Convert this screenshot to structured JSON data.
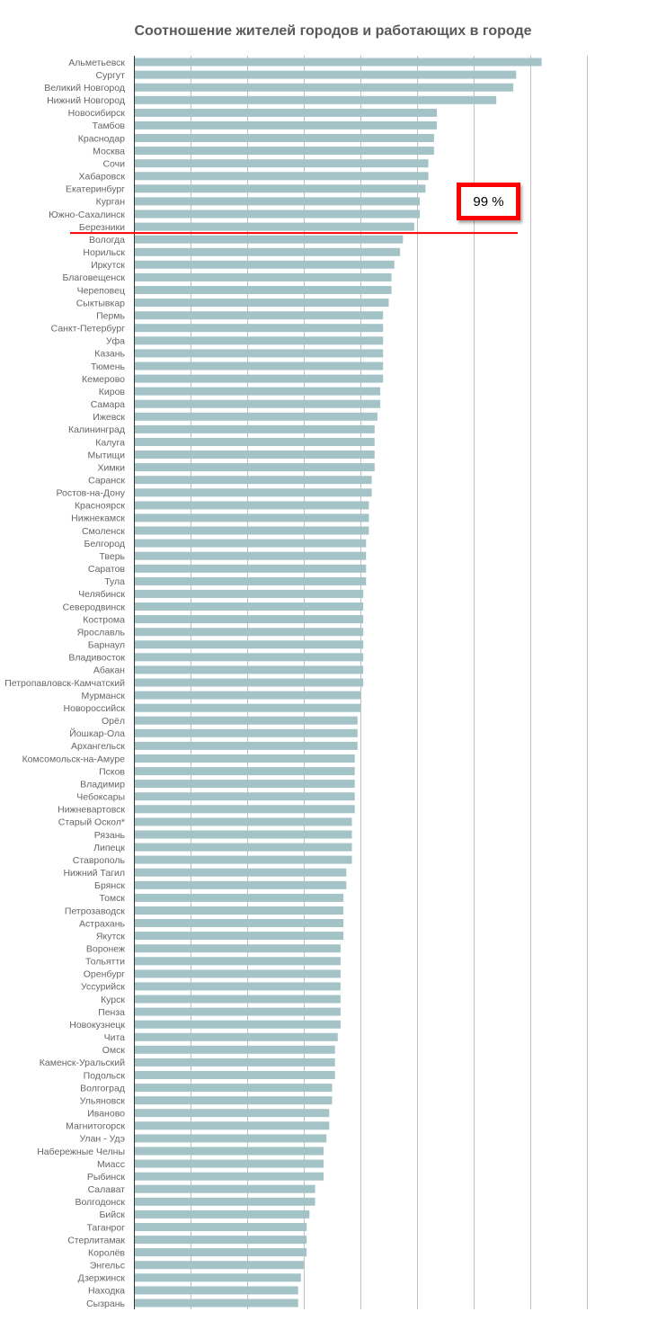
{
  "chart_data": {
    "type": "bar",
    "orientation": "horizontal",
    "title": "Соотношение жителей городов и работающих в городе",
    "xlabel": "",
    "ylabel": "",
    "unit": "%",
    "xlim": [
      0,
      160
    ],
    "grid_step": 20,
    "grid": true,
    "legend": "none",
    "colors": {
      "bar": "#a3c3c7",
      "grid": "#c0c0c0",
      "axis": "#333333",
      "annotation": "#ff0000"
    },
    "annotation": {
      "label": "99 %",
      "after_category": "Березники"
    },
    "categories": [
      "Альметьевск",
      "Сургут",
      "Великий Новгород",
      "Нижний Новгород",
      "Новосибирск",
      "Тамбов",
      "Краснодар",
      "Москва",
      "Сочи",
      "Хабаровск",
      "Екатеринбург",
      "Курган",
      "Южно-Сахалинск",
      "Березники",
      "Вологда",
      "Норильск",
      "Иркутск",
      "Благовещенск",
      "Череповец",
      "Сыктывкар",
      "Пермь",
      "Санкт-Петербург",
      "Уфа",
      "Казань",
      "Тюмень",
      "Кемерово",
      "Киров",
      "Самара",
      "Ижевск",
      "Калининград",
      "Калуга",
      "Мытищи",
      "Химки",
      "Саранск",
      "Ростов-на-Дону",
      "Красноярск",
      "Нижнекамск",
      "Смоленск",
      "Белгород",
      "Тверь",
      "Саратов",
      "Тула",
      "Челябинск",
      "Северодвинск",
      "Кострома",
      "Ярославль",
      "Барнаул",
      "Владивосток",
      "Абакан",
      "Петропавловск-Камчатский",
      "Мурманск",
      "Новороссийск",
      "Орёл",
      "Йошкар-Ола",
      "Архангельск",
      "Комсомольск-на-Амуре",
      "Псков",
      "Владимир",
      "Чебоксары",
      "Нижневартовск",
      "Старый Оскол*",
      "Рязань",
      "Липецк",
      "Ставрополь",
      "Нижний Тагил",
      "Брянск",
      "Томск",
      "Петрозаводск",
      "Астрахань",
      "Якутск",
      "Воронеж",
      "Тольятти",
      "Оренбург",
      "Уссурийск",
      "Курск",
      "Пенза",
      "Новокузнецк",
      "Чита",
      "Омск",
      "Каменск-Уральский",
      "Подольск",
      "Волгоград",
      "Ульяновск",
      "Иваново",
      "Магнитогорск",
      "Улан - Удэ",
      "Набережные Челны",
      "Миасс",
      "Рыбинск",
      "Салават",
      "Волгодонск",
      "Бийск",
      "Таганрог",
      "Стерлитамак",
      "Королёв",
      "Энгельс",
      "Дзержинск",
      "Находка",
      "Сызрань"
    ],
    "values": [
      144,
      135,
      134,
      128,
      107,
      107,
      106,
      106,
      104,
      104,
      103,
      101,
      101,
      99,
      95,
      94,
      92,
      91,
      91,
      90,
      88,
      88,
      88,
      88,
      88,
      88,
      87,
      87,
      86,
      85,
      85,
      85,
      85,
      84,
      84,
      83,
      83,
      83,
      82,
      82,
      82,
      82,
      81,
      81,
      81,
      81,
      81,
      81,
      81,
      81,
      80,
      80,
      79,
      79,
      79,
      78,
      78,
      78,
      78,
      78,
      77,
      77,
      77,
      77,
      75,
      75,
      74,
      74,
      74,
      74,
      73,
      73,
      73,
      73,
      73,
      73,
      73,
      72,
      71,
      71,
      71,
      70,
      70,
      69,
      69,
      68,
      67,
      67,
      67,
      64,
      64,
      62,
      61,
      61,
      61,
      60,
      59,
      58,
      58
    ]
  }
}
